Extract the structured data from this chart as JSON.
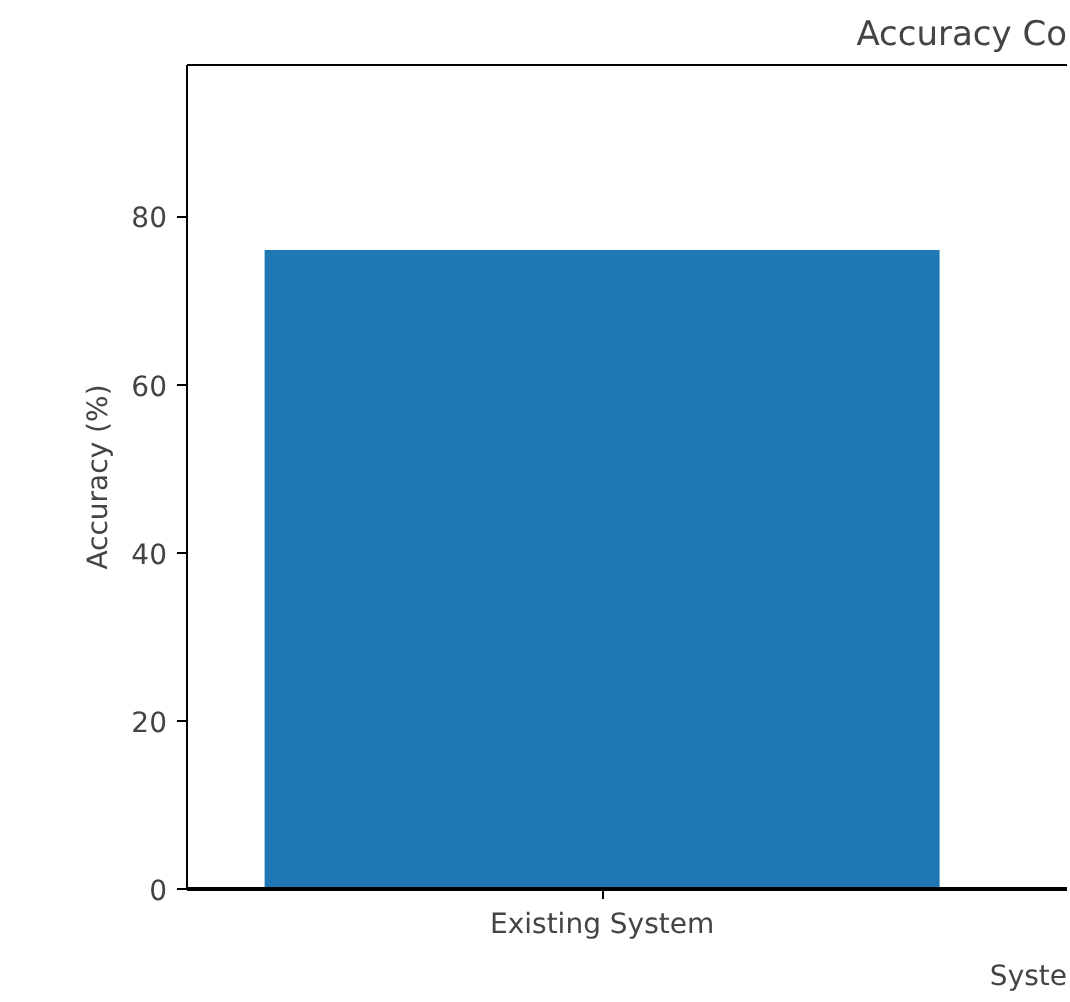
{
  "chart_data": {
    "type": "bar",
    "title": "Accuracy Co",
    "xlabel": "Syste",
    "ylabel": "Accuracy (%)",
    "categories": [
      "Existing System"
    ],
    "series": [
      {
        "color": "#1f77b4",
        "values": [
          76
        ]
      }
    ],
    "ylim": [
      0,
      98
    ],
    "yticks": [
      0,
      20,
      40,
      60,
      80
    ],
    "grid": false
  }
}
